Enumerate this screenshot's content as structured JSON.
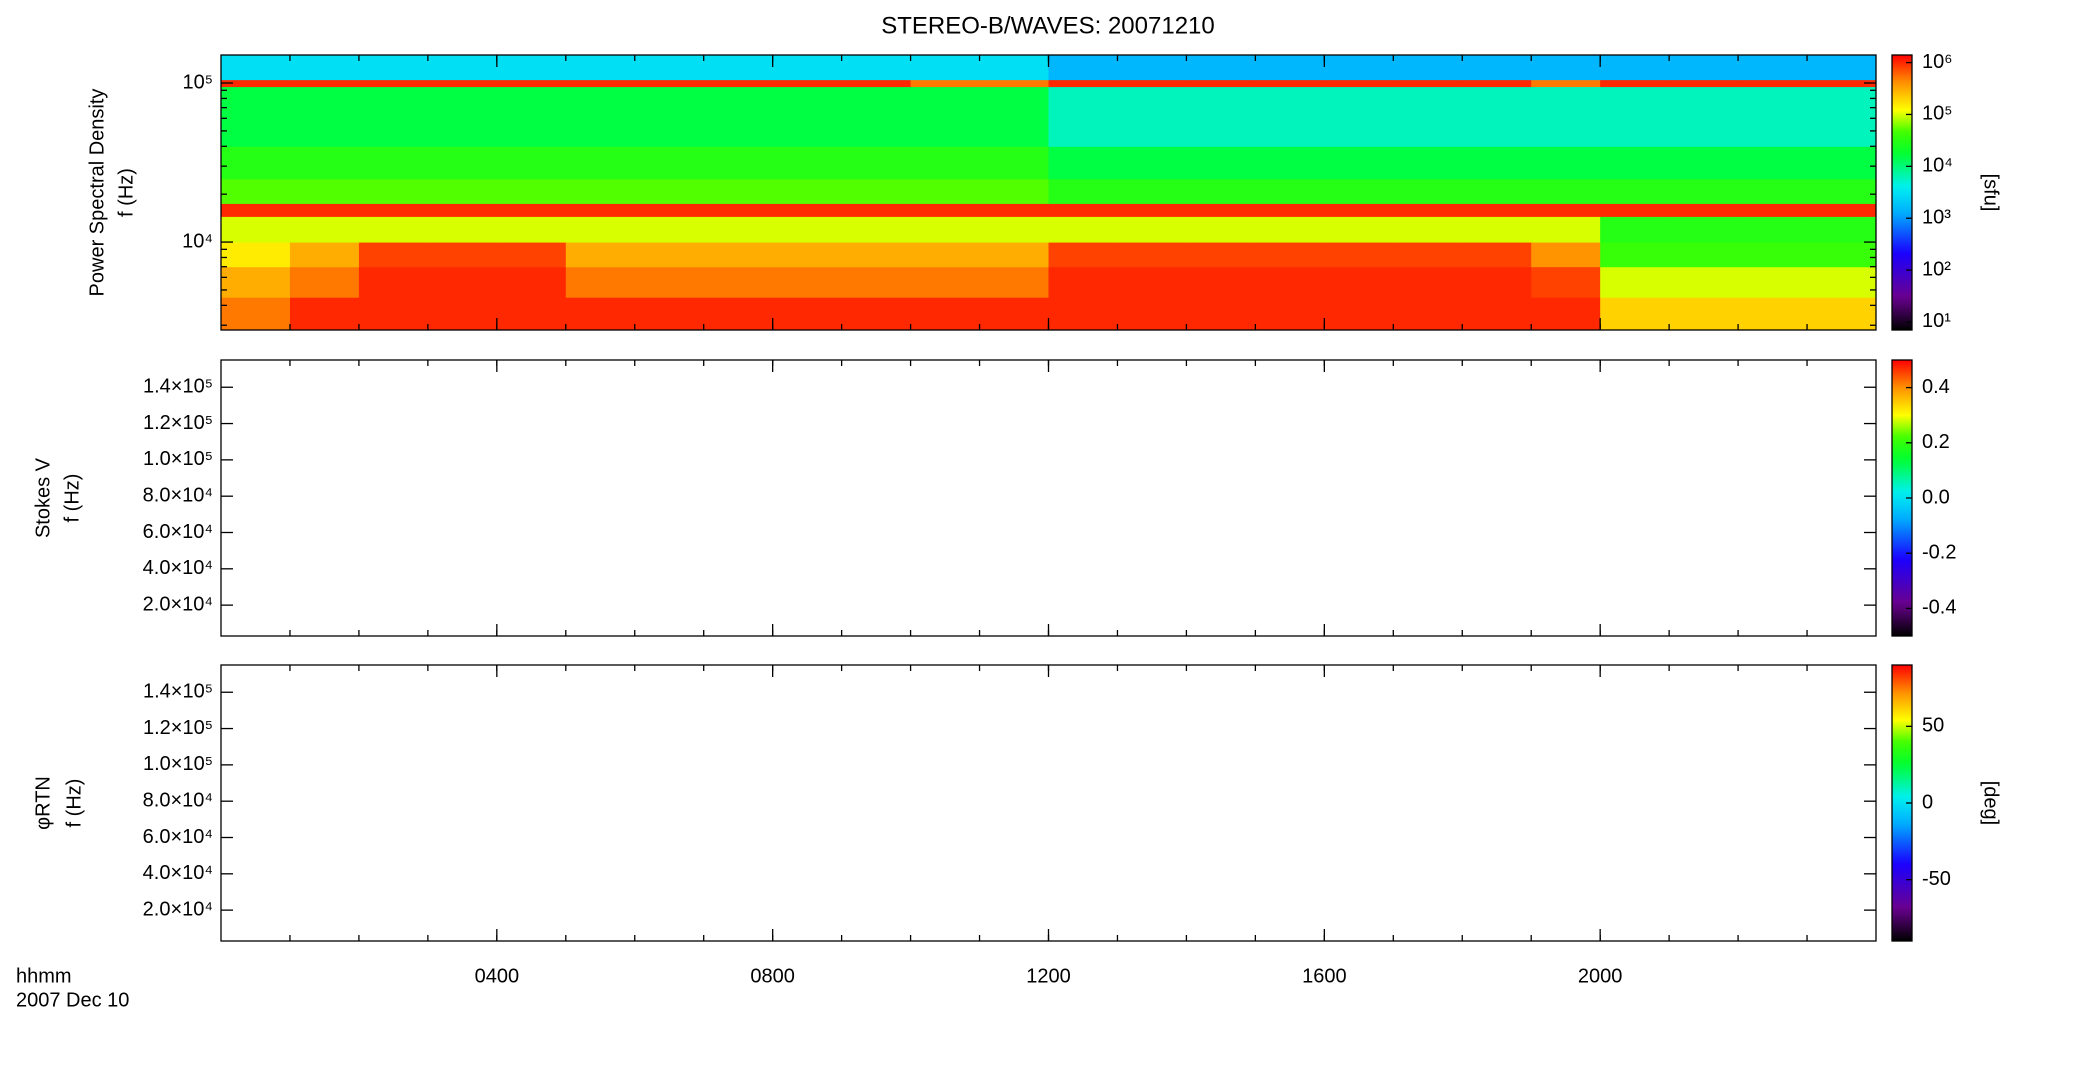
{
  "chart_data": {
    "title": "STEREO-B/WAVES: 20071210",
    "xlabel": "hhmm",
    "date": "2007 Dec 10",
    "xlim": [
      0,
      24
    ],
    "xticks": [
      {
        "value": 4,
        "label": "0400"
      },
      {
        "value": 8,
        "label": "0800"
      },
      {
        "value": 12,
        "label": "1200"
      },
      {
        "value": 16,
        "label": "1600"
      },
      {
        "value": 20,
        "label": "2000"
      }
    ],
    "panels": [
      {
        "type": "heatmap",
        "ylabel": [
          "Power Spectral Density",
          "f (Hz)"
        ],
        "ylog": true,
        "ylim": [
          2800,
          150000
        ],
        "yticks": [
          {
            "value": 10000,
            "label": "10⁴"
          },
          {
            "value": 100000,
            "label": "10⁵"
          }
        ],
        "x_bins": [
          0,
          1,
          2,
          3,
          4,
          5,
          6,
          7,
          8,
          9,
          10,
          11,
          12,
          13,
          14,
          15,
          16,
          17,
          18,
          19,
          20,
          21,
          22,
          23,
          24
        ],
        "y_bins": [
          2800,
          4500,
          7000,
          10000,
          14500,
          17500,
          25000,
          40000,
          95000,
          105000,
          150000
        ],
        "values": [
          [
            500000,
            1000000,
            1000000,
            1000000,
            1000000,
            1000000,
            1000000,
            1000000,
            1000000,
            1000000,
            1000000,
            1000000,
            1000000,
            1000000,
            1000000,
            1000000,
            1000000,
            1000000,
            1000000,
            1000000,
            200000,
            200000,
            200000,
            200000
          ],
          [
            300000,
            500000,
            1000000,
            1000000,
            1000000,
            500000,
            500000,
            500000,
            500000,
            500000,
            500000,
            500000,
            1000000,
            1000000,
            1000000,
            1000000,
            1000000,
            1000000,
            1000000,
            800000,
            100000,
            100000,
            100000,
            100000
          ],
          [
            150000,
            300000,
            800000,
            800000,
            800000,
            300000,
            300000,
            300000,
            300000,
            300000,
            300000,
            300000,
            800000,
            800000,
            800000,
            800000,
            800000,
            800000,
            800000,
            400000,
            40000,
            40000,
            40000,
            40000
          ],
          [
            100000,
            100000,
            100000,
            100000,
            100000,
            100000,
            100000,
            100000,
            100000,
            100000,
            100000,
            100000,
            100000,
            100000,
            100000,
            100000,
            100000,
            100000,
            100000,
            100000,
            30000,
            30000,
            30000,
            30000
          ],
          [
            1000000,
            1000000,
            1000000,
            1000000,
            1000000,
            1000000,
            1000000,
            1000000,
            1000000,
            1000000,
            1000000,
            1000000,
            1000000,
            1000000,
            1000000,
            1000000,
            1000000,
            1000000,
            1000000,
            1000000,
            1000000,
            1000000,
            1000000,
            1000000
          ],
          [
            50000,
            50000,
            50000,
            50000,
            50000,
            50000,
            50000,
            50000,
            50000,
            50000,
            50000,
            50000,
            30000,
            30000,
            30000,
            30000,
            30000,
            30000,
            30000,
            30000,
            30000,
            30000,
            30000,
            30000
          ],
          [
            30000,
            30000,
            30000,
            30000,
            30000,
            30000,
            30000,
            30000,
            30000,
            30000,
            30000,
            30000,
            15000,
            15000,
            15000,
            15000,
            15000,
            15000,
            15000,
            15000,
            15000,
            15000,
            15000,
            15000
          ],
          [
            15000,
            15000,
            15000,
            15000,
            15000,
            15000,
            15000,
            15000,
            15000,
            15000,
            15000,
            15000,
            6000,
            6000,
            6000,
            6000,
            6000,
            6000,
            6000,
            6000,
            6000,
            6000,
            6000,
            6000
          ],
          [
            1000000,
            1000000,
            1000000,
            1000000,
            1000000,
            1000000,
            1000000,
            1000000,
            1000000,
            1000000,
            500000,
            500000,
            1000000,
            1000000,
            1000000,
            1000000,
            1000000,
            1000000,
            1000000,
            500000,
            1000000,
            1000000,
            1000000,
            1000000
          ],
          [
            3000,
            3000,
            3000,
            3000,
            3000,
            3000,
            3000,
            3000,
            3000,
            3000,
            3000,
            3000,
            1500,
            1500,
            1500,
            1500,
            1500,
            1500,
            1500,
            1500,
            1500,
            1500,
            1500,
            1500
          ]
        ],
        "colorbar": {
          "log": true,
          "lim": [
            7,
            1400000
          ],
          "label": "[sfu]",
          "ticks": [
            {
              "value": 10,
              "label": "10¹"
            },
            {
              "value": 100,
              "label": "10²"
            },
            {
              "value": 1000,
              "label": "10³"
            },
            {
              "value": 10000,
              "label": "10⁴"
            },
            {
              "value": 100000,
              "label": "10⁵"
            },
            {
              "value": 1000000,
              "label": "10⁶"
            }
          ]
        }
      },
      {
        "type": "heatmap",
        "ylabel": [
          "Stokes V",
          "f (Hz)"
        ],
        "ylog": false,
        "ylim": [
          3000,
          155000
        ],
        "yticks": [
          {
            "value": 20000,
            "label": "2.0×10⁴"
          },
          {
            "value": 40000,
            "label": "4.0×10⁴"
          },
          {
            "value": 60000,
            "label": "6.0×10⁴"
          },
          {
            "value": 80000,
            "label": "8.0×10⁴"
          },
          {
            "value": 100000,
            "label": "1.0×10⁵"
          },
          {
            "value": 120000,
            "label": "1.2×10⁵"
          },
          {
            "value": 140000,
            "label": "1.4×10⁵"
          }
        ],
        "colorbar": {
          "log": false,
          "lim": [
            -0.5,
            0.5
          ],
          "ticks": [
            -0.4,
            -0.2,
            {
              "value": 0,
              "label": "0.0"
            },
            0.2,
            0.4
          ]
        }
      },
      {
        "type": "heatmap",
        "ylabel": [
          "φRTN",
          "f (Hz)"
        ],
        "ylog": false,
        "ylim": [
          3000,
          155000
        ],
        "yticks": [
          {
            "value": 20000,
            "label": "2.0×10⁴"
          },
          {
            "value": 40000,
            "label": "4.0×10⁴"
          },
          {
            "value": 60000,
            "label": "6.0×10⁴"
          },
          {
            "value": 80000,
            "label": "8.0×10⁴"
          },
          {
            "value": 100000,
            "label": "1.0×10⁵"
          },
          {
            "value": 120000,
            "label": "1.2×10⁵"
          },
          {
            "value": 140000,
            "label": "1.4×10⁵"
          }
        ],
        "colorbar": {
          "log": false,
          "lim": [
            -90,
            90
          ],
          "label": "[deg]",
          "ticks": [
            -50,
            0,
            50
          ]
        }
      }
    ]
  }
}
